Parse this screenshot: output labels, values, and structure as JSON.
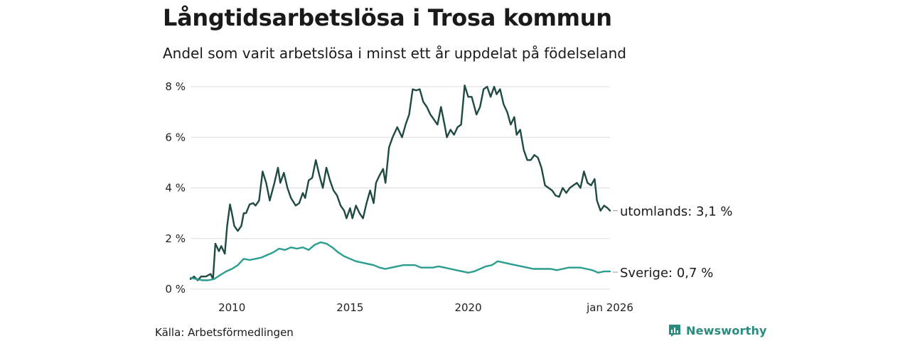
{
  "title": "Långtidsarbetslösa i Trosa kommun",
  "subtitle": "Andel som varit arbetslösa i minst ett år uppdelat på födelseland",
  "source": "Källa: Arbetsförmedlingen",
  "logo": {
    "text": "Newsworthy",
    "icon": "newsworthy-logo-icon",
    "color": "#2b8a7e"
  },
  "chart_data": {
    "type": "line",
    "title": "Långtidsarbetslösa i Trosa kommun",
    "subtitle": "Andel som varit arbetslösa i minst ett år uppdelat på födelseland",
    "xlabel": "",
    "ylabel": "",
    "x_range": [
      2008.25,
      2026.0
    ],
    "ylim": [
      0,
      8
    ],
    "grid": true,
    "y_ticks": [
      {
        "value": 0,
        "label": "0 %"
      },
      {
        "value": 2,
        "label": "2 %"
      },
      {
        "value": 4,
        "label": "4 %"
      },
      {
        "value": 6,
        "label": "6 %"
      },
      {
        "value": 8,
        "label": "8 %"
      }
    ],
    "x_ticks": [
      {
        "value": 2010,
        "label": "2010"
      },
      {
        "value": 2015,
        "label": "2015"
      },
      {
        "value": 2020,
        "label": "2020"
      },
      {
        "value": 2026,
        "label": "jan 2026"
      }
    ],
    "series": [
      {
        "name": "utomlands",
        "label": "utomlands: 3,1 %",
        "color": "#1f4a42",
        "points": [
          [
            2008.25,
            0.4
          ],
          [
            2008.4,
            0.5
          ],
          [
            2008.55,
            0.35
          ],
          [
            2008.7,
            0.5
          ],
          [
            2008.9,
            0.5
          ],
          [
            2009.1,
            0.6
          ],
          [
            2009.2,
            0.4
          ],
          [
            2009.3,
            1.8
          ],
          [
            2009.45,
            1.5
          ],
          [
            2009.55,
            1.7
          ],
          [
            2009.7,
            1.4
          ],
          [
            2009.8,
            2.5
          ],
          [
            2009.92,
            3.35
          ],
          [
            2010.0,
            3.0
          ],
          [
            2010.1,
            2.5
          ],
          [
            2010.25,
            2.3
          ],
          [
            2010.4,
            2.5
          ],
          [
            2010.5,
            3.0
          ],
          [
            2010.6,
            3.0
          ],
          [
            2010.75,
            3.35
          ],
          [
            2010.9,
            3.4
          ],
          [
            2011.0,
            3.3
          ],
          [
            2011.15,
            3.5
          ],
          [
            2011.3,
            4.65
          ],
          [
            2011.45,
            4.2
          ],
          [
            2011.6,
            3.5
          ],
          [
            2011.8,
            4.2
          ],
          [
            2011.95,
            4.8
          ],
          [
            2012.05,
            4.2
          ],
          [
            2012.2,
            4.6
          ],
          [
            2012.35,
            4.0
          ],
          [
            2012.5,
            3.6
          ],
          [
            2012.7,
            3.3
          ],
          [
            2012.85,
            3.4
          ],
          [
            2013.0,
            3.8
          ],
          [
            2013.1,
            3.6
          ],
          [
            2013.25,
            4.3
          ],
          [
            2013.4,
            4.4
          ],
          [
            2013.55,
            5.1
          ],
          [
            2013.7,
            4.5
          ],
          [
            2013.85,
            4.0
          ],
          [
            2014.0,
            4.8
          ],
          [
            2014.15,
            4.3
          ],
          [
            2014.3,
            3.9
          ],
          [
            2014.45,
            3.7
          ],
          [
            2014.6,
            3.3
          ],
          [
            2014.75,
            3.1
          ],
          [
            2014.85,
            2.8
          ],
          [
            2015.0,
            3.2
          ],
          [
            2015.1,
            2.8
          ],
          [
            2015.25,
            3.3
          ],
          [
            2015.4,
            3.0
          ],
          [
            2015.55,
            2.8
          ],
          [
            2015.7,
            3.4
          ],
          [
            2015.85,
            3.9
          ],
          [
            2016.0,
            3.4
          ],
          [
            2016.1,
            4.2
          ],
          [
            2016.25,
            4.5
          ],
          [
            2016.4,
            4.75
          ],
          [
            2016.5,
            4.2
          ],
          [
            2016.65,
            5.6
          ],
          [
            2016.8,
            6.0
          ],
          [
            2017.0,
            6.4
          ],
          [
            2017.2,
            6.0
          ],
          [
            2017.35,
            6.5
          ],
          [
            2017.5,
            6.9
          ],
          [
            2017.65,
            7.9
          ],
          [
            2017.8,
            7.85
          ],
          [
            2017.95,
            7.9
          ],
          [
            2018.1,
            7.4
          ],
          [
            2018.25,
            7.2
          ],
          [
            2018.4,
            6.9
          ],
          [
            2018.55,
            6.7
          ],
          [
            2018.7,
            6.5
          ],
          [
            2018.85,
            7.2
          ],
          [
            2019.0,
            6.5
          ],
          [
            2019.1,
            6.0
          ],
          [
            2019.25,
            6.3
          ],
          [
            2019.4,
            6.1
          ],
          [
            2019.55,
            6.4
          ],
          [
            2019.7,
            6.5
          ],
          [
            2019.85,
            8.05
          ],
          [
            2020.0,
            7.6
          ],
          [
            2020.15,
            7.6
          ],
          [
            2020.35,
            6.9
          ],
          [
            2020.5,
            7.2
          ],
          [
            2020.65,
            7.9
          ],
          [
            2020.8,
            8.0
          ],
          [
            2020.95,
            7.6
          ],
          [
            2021.1,
            8.0
          ],
          [
            2021.2,
            7.7
          ],
          [
            2021.35,
            7.9
          ],
          [
            2021.5,
            7.3
          ],
          [
            2021.65,
            7.0
          ],
          [
            2021.8,
            6.5
          ],
          [
            2021.95,
            6.8
          ],
          [
            2022.05,
            6.1
          ],
          [
            2022.2,
            6.3
          ],
          [
            2022.35,
            5.5
          ],
          [
            2022.5,
            5.1
          ],
          [
            2022.65,
            5.1
          ],
          [
            2022.8,
            5.3
          ],
          [
            2022.95,
            5.2
          ],
          [
            2023.1,
            4.8
          ],
          [
            2023.25,
            4.1
          ],
          [
            2023.4,
            4.0
          ],
          [
            2023.55,
            3.9
          ],
          [
            2023.7,
            3.7
          ],
          [
            2023.85,
            3.65
          ],
          [
            2024.0,
            4.0
          ],
          [
            2024.15,
            3.8
          ],
          [
            2024.3,
            4.0
          ],
          [
            2024.45,
            4.1
          ],
          [
            2024.6,
            4.2
          ],
          [
            2024.75,
            4.0
          ],
          [
            2024.9,
            4.65
          ],
          [
            2025.05,
            4.2
          ],
          [
            2025.2,
            4.1
          ],
          [
            2025.35,
            4.35
          ],
          [
            2025.45,
            3.5
          ],
          [
            2025.6,
            3.1
          ],
          [
            2025.75,
            3.3
          ],
          [
            2025.9,
            3.2
          ],
          [
            2026.0,
            3.1
          ]
        ]
      },
      {
        "name": "Sverige",
        "label": "Sverige: 0,7 %",
        "color": "#2a9d8f",
        "points": [
          [
            2008.25,
            0.45
          ],
          [
            2008.5,
            0.4
          ],
          [
            2008.75,
            0.35
          ],
          [
            2009.0,
            0.35
          ],
          [
            2009.25,
            0.4
          ],
          [
            2009.5,
            0.55
          ],
          [
            2009.75,
            0.7
          ],
          [
            2010.0,
            0.8
          ],
          [
            2010.25,
            0.95
          ],
          [
            2010.5,
            1.2
          ],
          [
            2010.75,
            1.15
          ],
          [
            2011.0,
            1.2
          ],
          [
            2011.25,
            1.25
          ],
          [
            2011.5,
            1.35
          ],
          [
            2011.75,
            1.45
          ],
          [
            2012.0,
            1.6
          ],
          [
            2012.25,
            1.55
          ],
          [
            2012.5,
            1.65
          ],
          [
            2012.75,
            1.6
          ],
          [
            2013.0,
            1.65
          ],
          [
            2013.25,
            1.55
          ],
          [
            2013.5,
            1.75
          ],
          [
            2013.75,
            1.85
          ],
          [
            2014.0,
            1.8
          ],
          [
            2014.25,
            1.65
          ],
          [
            2014.5,
            1.45
          ],
          [
            2014.75,
            1.3
          ],
          [
            2015.0,
            1.2
          ],
          [
            2015.25,
            1.1
          ],
          [
            2015.5,
            1.05
          ],
          [
            2015.75,
            1.0
          ],
          [
            2016.0,
            0.95
          ],
          [
            2016.25,
            0.85
          ],
          [
            2016.5,
            0.8
          ],
          [
            2016.75,
            0.85
          ],
          [
            2017.0,
            0.9
          ],
          [
            2017.25,
            0.95
          ],
          [
            2017.5,
            0.95
          ],
          [
            2017.75,
            0.95
          ],
          [
            2018.0,
            0.85
          ],
          [
            2018.25,
            0.85
          ],
          [
            2018.5,
            0.85
          ],
          [
            2018.75,
            0.9
          ],
          [
            2019.0,
            0.85
          ],
          [
            2019.25,
            0.8
          ],
          [
            2019.5,
            0.75
          ],
          [
            2019.75,
            0.7
          ],
          [
            2020.0,
            0.65
          ],
          [
            2020.25,
            0.7
          ],
          [
            2020.5,
            0.8
          ],
          [
            2020.75,
            0.9
          ],
          [
            2021.0,
            0.95
          ],
          [
            2021.25,
            1.1
          ],
          [
            2021.5,
            1.05
          ],
          [
            2021.75,
            1.0
          ],
          [
            2022.0,
            0.95
          ],
          [
            2022.25,
            0.9
          ],
          [
            2022.5,
            0.85
          ],
          [
            2022.75,
            0.8
          ],
          [
            2023.0,
            0.8
          ],
          [
            2023.25,
            0.8
          ],
          [
            2023.5,
            0.8
          ],
          [
            2023.75,
            0.75
          ],
          [
            2024.0,
            0.8
          ],
          [
            2024.25,
            0.85
          ],
          [
            2024.5,
            0.85
          ],
          [
            2024.75,
            0.85
          ],
          [
            2025.0,
            0.8
          ],
          [
            2025.25,
            0.75
          ],
          [
            2025.5,
            0.65
          ],
          [
            2025.75,
            0.7
          ],
          [
            2026.0,
            0.7
          ]
        ]
      }
    ]
  }
}
